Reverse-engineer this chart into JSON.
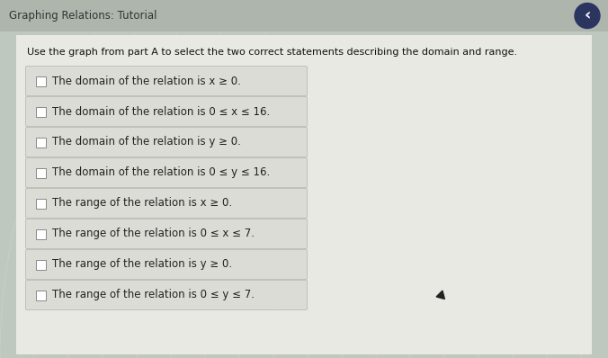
{
  "title": "Graphing Relations: Tutorial",
  "instruction": "Use the graph from part A to select the two correct statements describing the domain and range.",
  "options": [
    "The domain of the relation is x ≥ 0.",
    "The domain of the relation is 0 ≤ x ≤ 16.",
    "The domain of the relation is y ≥ 0.",
    "The domain of the relation is 0 ≤ y ≤ 16.",
    "The range of the relation is x ≥ 0.",
    "The range of the relation is 0 ≤ x ≤ 7.",
    "The range of the relation is y ≥ 0.",
    "The range of the relation is 0 ≤ y ≤ 7."
  ],
  "bg_color_top": "#b8bfb4",
  "bg_color_main": "#bec8be",
  "panel_bg": "#eeeee8",
  "box_bg": "#dcdcd6",
  "box_border": "#c0c0ba",
  "title_color": "#333333",
  "instruction_color": "#111111",
  "option_color": "#222222",
  "checkbox_color": "#888888",
  "title_fontsize": 8.5,
  "instruction_fontsize": 8.0,
  "option_fontsize": 8.5,
  "fig_width": 6.76,
  "fig_height": 3.98,
  "arc_color": "#ccd5cc",
  "back_btn_color": "#2b3560"
}
